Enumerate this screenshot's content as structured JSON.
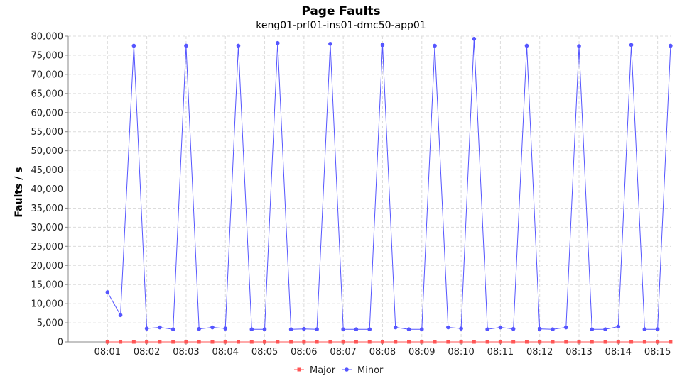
{
  "title": "Page Faults",
  "subtitle": "keng01-prf01-ins01-dmc50-app01",
  "colors": {
    "major": "#ff5555",
    "minor": "#5555ff",
    "grid": "#dcdcdc"
  },
  "chart_data": {
    "type": "line",
    "title": "Page Faults",
    "subtitle": "keng01-prf01-ins01-dmc50-app01",
    "xlabel": "",
    "ylabel": "Faults / s",
    "ylim": [
      0,
      80000
    ],
    "xlim_minutes": [
      0.0,
      15.35
    ],
    "yticks": [
      0,
      5000,
      10000,
      15000,
      20000,
      25000,
      30000,
      35000,
      40000,
      45000,
      50000,
      55000,
      60000,
      65000,
      70000,
      75000,
      80000
    ],
    "ytick_labels": [
      "0",
      "5,000",
      "10,000",
      "15,000",
      "20,000",
      "25,000",
      "30,000",
      "35,000",
      "40,000",
      "45,000",
      "50,000",
      "55,000",
      "60,000",
      "65,000",
      "70,000",
      "75,000",
      "80,000"
    ],
    "xticks": [
      1,
      2,
      3,
      4,
      5,
      6,
      7,
      8,
      9,
      10,
      11,
      12,
      13,
      14,
      15
    ],
    "xtick_labels": [
      "08:01",
      "08:02",
      "08:03",
      "08:04",
      "08:05",
      "08:06",
      "08:07",
      "08:08",
      "08:09",
      "08:10",
      "08:11",
      "08:12",
      "08:13",
      "08:14",
      "08:15"
    ],
    "grid": true,
    "legend_position": "bottom",
    "x_minutes": [
      1.0,
      1.33,
      1.67,
      2.0,
      2.33,
      2.67,
      3.0,
      3.33,
      3.67,
      4.0,
      4.33,
      4.67,
      5.0,
      5.33,
      5.67,
      6.0,
      6.33,
      6.67,
      7.0,
      7.33,
      7.67,
      8.0,
      8.33,
      8.67,
      9.0,
      9.33,
      9.67,
      10.0,
      10.33,
      10.67,
      11.0,
      11.33,
      11.67,
      12.0,
      12.33,
      12.67,
      13.0,
      13.33,
      13.67,
      14.0,
      14.33,
      14.67,
      15.0,
      15.33
    ],
    "series": [
      {
        "name": "Major",
        "marker": "square",
        "values": [
          0,
          0,
          0,
          0,
          0,
          0,
          0,
          0,
          0,
          0,
          0,
          0,
          0,
          0,
          0,
          0,
          0,
          0,
          0,
          0,
          0,
          0,
          0,
          0,
          0,
          0,
          0,
          0,
          0,
          0,
          0,
          0,
          0,
          0,
          0,
          0,
          0,
          0,
          0,
          0,
          0,
          0,
          0,
          0
        ]
      },
      {
        "name": "Minor",
        "marker": "circle",
        "values": [
          13000,
          7000,
          77500,
          3500,
          3800,
          3300,
          77500,
          3400,
          3800,
          3500,
          77500,
          3300,
          3300,
          78200,
          3300,
          3400,
          3300,
          78000,
          3300,
          3300,
          3300,
          77700,
          3800,
          3300,
          3300,
          77500,
          3800,
          3500,
          79300,
          3300,
          3800,
          3400,
          77500,
          3400,
          3300,
          3800,
          77400,
          3300,
          3300,
          4000,
          77700,
          3300,
          3300,
          77500
        ]
      }
    ]
  }
}
